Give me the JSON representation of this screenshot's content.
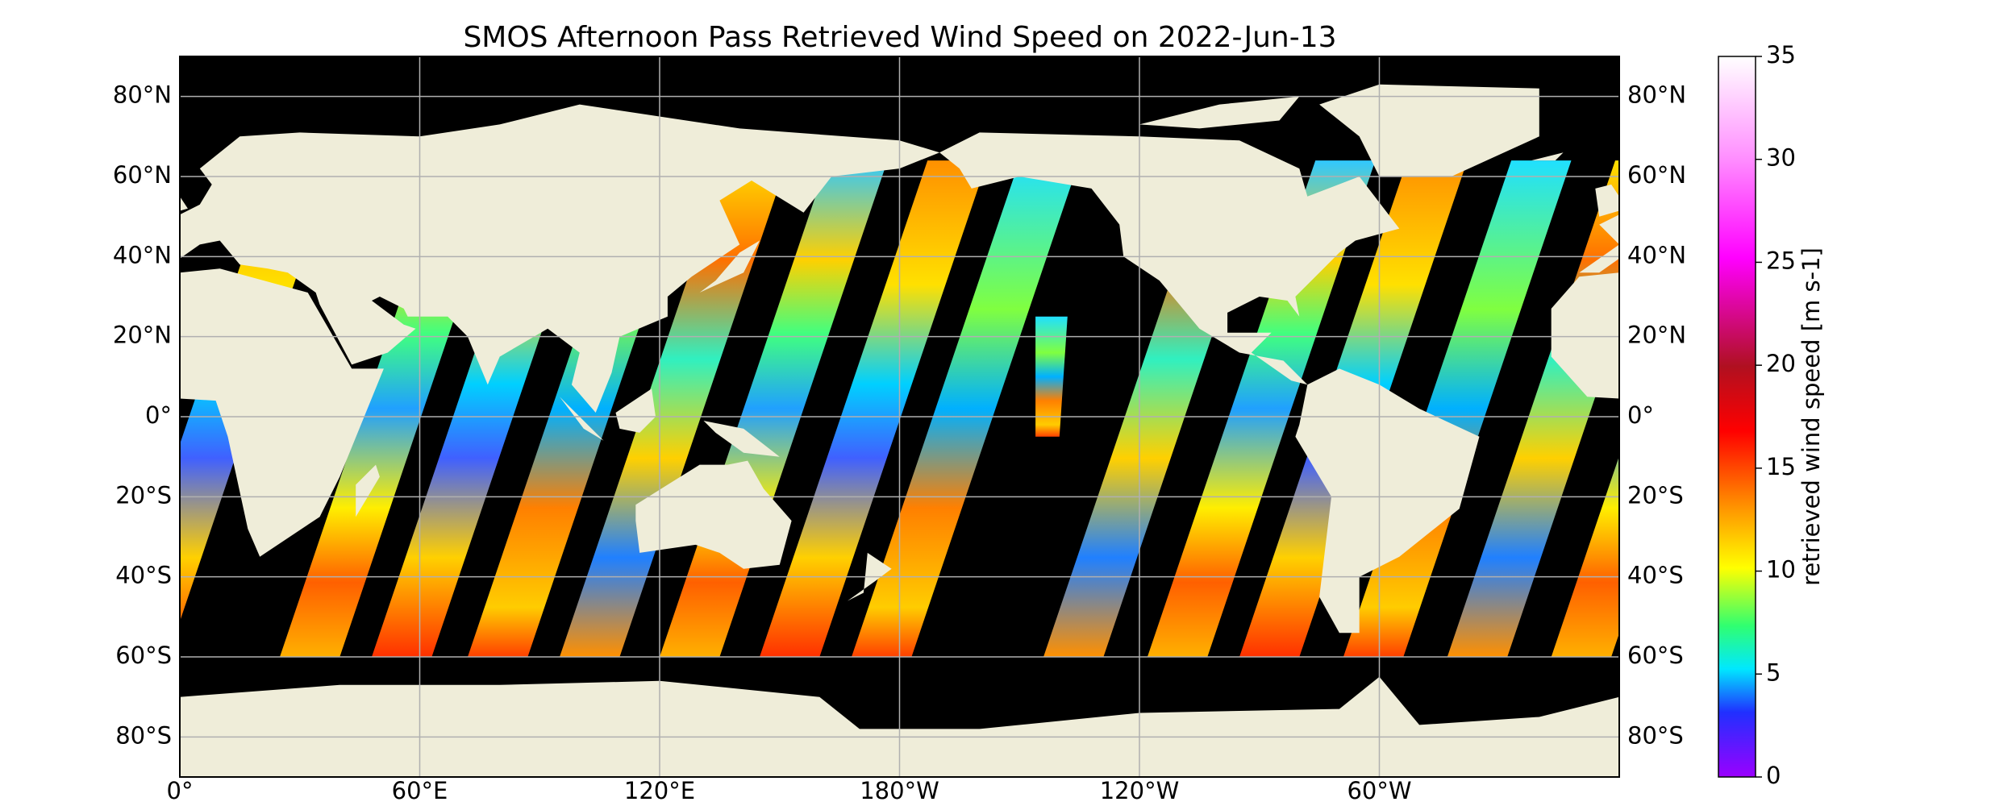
{
  "title": "SMOS Afternoon Pass Retrieved Wind Speed on 2022-Jun-13",
  "map": {
    "lon_range": [
      0,
      360
    ],
    "lat_range": [
      -90,
      90
    ],
    "lat_ticks": [
      {
        "value": 80,
        "label": "80°N"
      },
      {
        "value": 60,
        "label": "60°N"
      },
      {
        "value": 40,
        "label": "40°N"
      },
      {
        "value": 20,
        "label": "20°N"
      },
      {
        "value": 0,
        "label": "0°"
      },
      {
        "value": -20,
        "label": "20°S"
      },
      {
        "value": -40,
        "label": "40°S"
      },
      {
        "value": -60,
        "label": "60°S"
      },
      {
        "value": -80,
        "label": "80°S"
      }
    ],
    "lon_ticks": [
      {
        "value": 0,
        "label": "0°"
      },
      {
        "value": 60,
        "label": "60°E"
      },
      {
        "value": 120,
        "label": "120°E"
      },
      {
        "value": 180,
        "label": "180°W"
      },
      {
        "value": 240,
        "label": "120°W"
      },
      {
        "value": 300,
        "label": "60°W"
      }
    ]
  },
  "colorbar": {
    "label": "retrieved wind speed [m s-1]",
    "lim": [
      0,
      35
    ],
    "ticks": [
      0,
      5,
      10,
      15,
      20,
      25,
      30,
      35
    ]
  }
}
